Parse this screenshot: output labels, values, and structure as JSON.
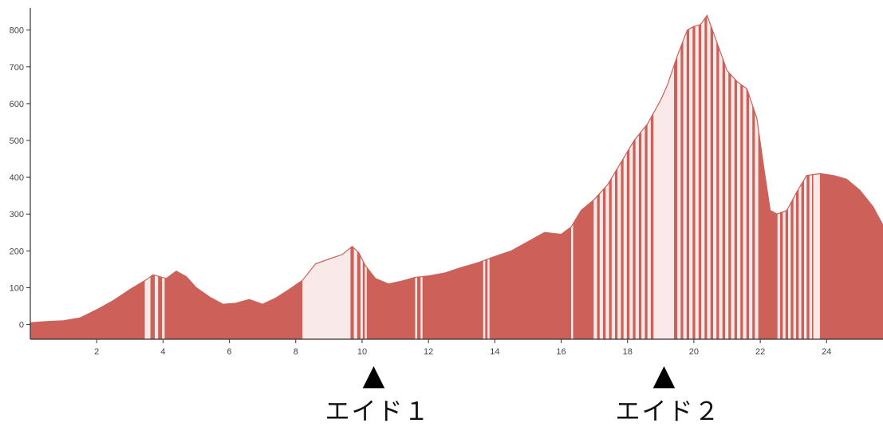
{
  "chart_data": {
    "type": "area",
    "title": "",
    "xlabel": "",
    "ylabel": "",
    "xlim": [
      0,
      25.7
    ],
    "ylim": [
      -40,
      860
    ],
    "x_ticks": [
      2,
      4,
      6,
      8,
      10,
      12,
      14,
      16,
      18,
      20,
      22,
      24
    ],
    "y_ticks": [
      0,
      100,
      200,
      300,
      400,
      500,
      600,
      700,
      800
    ],
    "grid": false,
    "colors": {
      "fill": "#cd6159",
      "highlight": "#f9e9e8",
      "outline": "#c9625b",
      "axis": "#333333"
    },
    "series": [
      {
        "x": [
          0,
          0.5,
          1,
          1.5,
          2,
          2.5,
          3,
          3.5,
          3.7,
          3.9,
          4.1,
          4.4,
          4.7,
          5,
          5.4,
          5.8,
          6.2,
          6.6,
          7,
          7.4,
          7.8,
          8.2,
          8.6,
          9,
          9.4,
          9.7,
          9.9,
          10.1,
          10.4,
          10.8,
          11.2,
          11.6,
          12,
          12.5,
          13,
          13.5,
          14,
          14.5,
          15,
          15.5,
          16,
          16.3,
          16.6,
          17,
          17.4,
          17.8,
          18.2,
          18.6,
          19,
          19.2,
          19.5,
          19.8,
          20,
          20.2,
          20.4,
          20.6,
          20.8,
          21,
          21.3,
          21.6,
          21.9,
          22.1,
          22.3,
          22.5,
          22.8,
          23.1,
          23.4,
          23.8,
          24.2,
          24.6,
          25,
          25.4,
          25.7
        ],
        "y": [
          5,
          8,
          10,
          18,
          40,
          65,
          95,
          122,
          135,
          130,
          125,
          145,
          130,
          100,
          75,
          55,
          58,
          68,
          55,
          72,
          95,
          120,
          165,
          178,
          190,
          212,
          195,
          160,
          125,
          110,
          118,
          128,
          132,
          140,
          155,
          168,
          185,
          200,
          225,
          250,
          245,
          265,
          310,
          340,
          380,
          440,
          500,
          545,
          610,
          650,
          730,
          800,
          810,
          815,
          840,
          790,
          740,
          690,
          660,
          640,
          560,
          430,
          310,
          300,
          310,
          360,
          405,
          410,
          405,
          395,
          365,
          320,
          270
        ]
      }
    ],
    "highlight_bands": [
      [
        3.45,
        3.62
      ],
      [
        3.75,
        3.85
      ],
      [
        3.97,
        4.05
      ],
      [
        8.2,
        9.65
      ],
      [
        9.75,
        9.85
      ],
      [
        9.95,
        10.02
      ],
      [
        10.08,
        10.14
      ],
      [
        11.6,
        11.66
      ],
      [
        11.76,
        11.82
      ],
      [
        13.65,
        13.71
      ],
      [
        13.78,
        13.84
      ],
      [
        16.3,
        16.36
      ],
      [
        16.98,
        17.08
      ],
      [
        17.16,
        17.26
      ],
      [
        17.34,
        17.44
      ],
      [
        17.52,
        17.62
      ],
      [
        17.7,
        17.8
      ],
      [
        17.88,
        17.98
      ],
      [
        18.06,
        18.16
      ],
      [
        18.24,
        18.34
      ],
      [
        18.42,
        18.52
      ],
      [
        18.6,
        18.7
      ],
      [
        18.78,
        19.4
      ],
      [
        19.5,
        19.6
      ],
      [
        19.68,
        19.78
      ],
      [
        19.86,
        19.96
      ],
      [
        20.04,
        20.14
      ],
      [
        20.22,
        20.32
      ],
      [
        20.4,
        20.5
      ],
      [
        20.58,
        20.68
      ],
      [
        20.76,
        20.86
      ],
      [
        20.94,
        21.04
      ],
      [
        21.12,
        21.22
      ],
      [
        21.3,
        21.4
      ],
      [
        21.48,
        21.58
      ],
      [
        21.66,
        21.76
      ],
      [
        21.84,
        21.94
      ],
      [
        22.52,
        22.6
      ],
      [
        22.68,
        22.76
      ],
      [
        22.84,
        22.92
      ],
      [
        23.0,
        23.08
      ],
      [
        23.16,
        23.24
      ],
      [
        23.32,
        23.4
      ],
      [
        23.48,
        23.56
      ],
      [
        23.6,
        23.8
      ]
    ]
  },
  "aid_stations": [
    {
      "label": "エイド１",
      "x": 10.35,
      "marker": "▲"
    },
    {
      "label": "エイド２",
      "x": 19.1,
      "marker": "▲"
    }
  ]
}
